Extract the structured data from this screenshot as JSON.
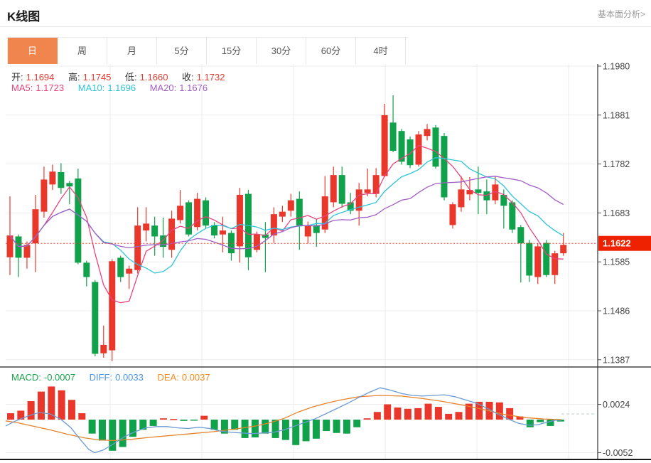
{
  "page": {
    "title": "K线图",
    "link": "基本面分析>"
  },
  "tabs": {
    "items": [
      "日",
      "周",
      "月",
      "5分",
      "15分",
      "30分",
      "60分",
      "4时"
    ],
    "active_index": 0
  },
  "legend": {
    "open_label": "开:",
    "open": "1.1694",
    "high_label": "高:",
    "high": "1.1745",
    "low_label": "低:",
    "low": "1.1660",
    "close_label": "收:",
    "close": "1.1732",
    "ma5_label": "MA5:",
    "ma5": "1.1723",
    "ma10_label": "MA10:",
    "ma10": "1.1696",
    "ma20_label": "MA20:",
    "ma20": "1.1676"
  },
  "macd_legend": {
    "macd_label": "MACD:",
    "macd": "-0.0007",
    "diff_label": "DIFF:",
    "diff": "0.0033",
    "dea_label": "DEA:",
    "dea": "0.0037"
  },
  "colors": {
    "up": "#e9382b",
    "down": "#0fa24a",
    "ma5": "#e8437c",
    "ma10": "#2ec3d9",
    "ma20": "#a25ec7",
    "dif_line": "#6b9bd2",
    "dea_line": "#e8822c",
    "price_line": "#f03b2d",
    "badge_bg": "#ee2200",
    "badge_text": "#ffffff",
    "accent": "#f0864d",
    "grid": "#ededed",
    "axis": "#333333",
    "axis_text": "#444444",
    "value_red": "#e23b30",
    "macd_text": "#16a349",
    "diff_text": "#4f94e0",
    "dea_text": "#f08c1f",
    "dash_ext": "#b9c8da"
  },
  "chart_data": {
    "type": "candlestick+macd",
    "title": "K线图",
    "grid": true,
    "main": {
      "type": "candlestick",
      "y_axis_labels": [
        "1.1980",
        "1.1881",
        "1.1782",
        "1.1683",
        "1.1585",
        "1.1486",
        "1.1387"
      ],
      "y_axis_side": "right",
      "current_price": "1.1622",
      "current_price_value": 1.1622,
      "ma_periods": [
        5,
        10,
        20
      ],
      "candles_ohlc": [
        [
          1.1594,
          1.1717,
          1.1558,
          1.1638
        ],
        [
          1.1636,
          1.164,
          1.1554,
          1.1593
        ],
        [
          1.1593,
          1.1626,
          1.1571,
          1.1619
        ],
        [
          1.1622,
          1.172,
          1.1564,
          1.1691
        ],
        [
          1.1686,
          1.1777,
          1.1674,
          1.1751
        ],
        [
          1.1741,
          1.1781,
          1.173,
          1.1767
        ],
        [
          1.1766,
          1.1784,
          1.1722,
          1.1734
        ],
        [
          1.1744,
          1.1748,
          1.1701,
          1.1737
        ],
        [
          1.1753,
          1.1773,
          1.158,
          1.1583
        ],
        [
          1.1583,
          1.1587,
          1.1535,
          1.1554
        ],
        [
          1.1544,
          1.1548,
          1.1394,
          1.1399
        ],
        [
          1.14,
          1.1456,
          1.1391,
          1.1417
        ],
        [
          1.1406,
          1.159,
          1.1384,
          1.1586
        ],
        [
          1.1593,
          1.1597,
          1.1544,
          1.1554
        ],
        [
          1.1561,
          1.1577,
          1.153,
          1.1571
        ],
        [
          1.1568,
          1.1695,
          1.1561,
          1.1658
        ],
        [
          1.1648,
          1.1695,
          1.1626,
          1.1662
        ],
        [
          1.1658,
          1.1676,
          1.1597,
          1.1636
        ],
        [
          1.1638,
          1.1674,
          1.1593,
          1.1615
        ],
        [
          1.1609,
          1.1688,
          1.1593,
          1.1672
        ],
        [
          1.1669,
          1.173,
          1.1662,
          1.1698
        ],
        [
          1.1705,
          1.1709,
          1.1636,
          1.164
        ],
        [
          1.1655,
          1.1724,
          1.1648,
          1.1712
        ],
        [
          1.1709,
          1.1715,
          1.1652,
          1.1658
        ],
        [
          1.1659,
          1.1665,
          1.1632,
          1.1638
        ],
        [
          1.164,
          1.1676,
          1.1604,
          1.1648
        ],
        [
          1.1643,
          1.1648,
          1.1587,
          1.1602
        ],
        [
          1.1616,
          1.1734,
          1.1583,
          1.172
        ],
        [
          1.1722,
          1.173,
          1.1568,
          1.1594
        ],
        [
          1.1609,
          1.1646,
          1.1604,
          1.164
        ],
        [
          1.164,
          1.1665,
          1.1564,
          1.1633
        ],
        [
          1.1638,
          1.1695,
          1.1623,
          1.1681
        ],
        [
          1.1676,
          1.1698,
          1.1665,
          1.1686
        ],
        [
          1.1688,
          1.1722,
          1.1676,
          1.1709
        ],
        [
          1.1712,
          1.1727,
          1.1609,
          1.1658
        ],
        [
          1.1636,
          1.1666,
          1.1622,
          1.1658
        ],
        [
          1.1659,
          1.1672,
          1.1615,
          1.1643
        ],
        [
          1.165,
          1.1758,
          1.1643,
          1.1717
        ],
        [
          1.1705,
          1.1777,
          1.1695,
          1.176
        ],
        [
          1.176,
          1.1777,
          1.1694,
          1.1702
        ],
        [
          1.1705,
          1.1724,
          1.1681,
          1.1688
        ],
        [
          1.1688,
          1.1744,
          1.1658,
          1.1731
        ],
        [
          1.1724,
          1.1773,
          1.1717,
          1.1731
        ],
        [
          1.1722,
          1.1774,
          1.1715,
          1.176
        ],
        [
          1.1758,
          1.1904,
          1.1756,
          1.1881
        ],
        [
          1.1866,
          1.1921,
          1.1806,
          1.1809
        ],
        [
          1.1849,
          1.1853,
          1.1781,
          1.1787
        ],
        [
          1.1832,
          1.1838,
          1.1774,
          1.178
        ],
        [
          1.1781,
          1.1849,
          1.1777,
          1.1842
        ],
        [
          1.1839,
          1.1863,
          1.183,
          1.1853
        ],
        [
          1.1856,
          1.1861,
          1.1773,
          1.1777
        ],
        [
          1.1839,
          1.1845,
          1.1709,
          1.1715
        ],
        [
          1.1659,
          1.1705,
          1.1652,
          1.1701
        ],
        [
          1.1695,
          1.1758,
          1.1686,
          1.1731
        ],
        [
          1.1721,
          1.1756,
          1.1709,
          1.173
        ],
        [
          1.1731,
          1.1777,
          1.1681,
          1.1724
        ],
        [
          1.1727,
          1.1751,
          1.1681,
          1.1709
        ],
        [
          1.1709,
          1.1758,
          1.1701,
          1.1741
        ],
        [
          1.172,
          1.1731,
          1.1652,
          1.1698
        ],
        [
          1.1705,
          1.1709,
          1.1643,
          1.165
        ],
        [
          1.1655,
          1.1659,
          1.1543,
          1.1622
        ],
        [
          1.1623,
          1.1629,
          1.1544,
          1.1557
        ],
        [
          1.1554,
          1.1622,
          1.154,
          1.1616
        ],
        [
          1.1623,
          1.1629,
          1.1554,
          1.1558
        ],
        [
          1.1558,
          1.1607,
          1.154,
          1.1602
        ],
        [
          1.1602,
          1.1643,
          1.1597,
          1.1619
        ]
      ]
    },
    "macd": {
      "type": "bar+line",
      "y_axis_labels": [
        "0.0024",
        "-0.0052"
      ],
      "histogram": [
        0.001,
        0.0014,
        0.0029,
        0.0044,
        0.0052,
        0.0046,
        0.0031,
        0.001,
        -0.0022,
        -0.0033,
        -0.0049,
        -0.0043,
        -0.0027,
        -0.0016,
        -0.001,
        0.0002,
        0.0001,
        -0.0002,
        -0.0001,
        0.0006,
        -0.0016,
        -0.0022,
        -0.0016,
        -0.0029,
        -0.0028,
        -0.0022,
        -0.0029,
        -0.0032,
        -0.004,
        -0.0034,
        -0.003,
        -0.0018,
        -0.0021,
        -0.0022,
        -0.0012,
        0.0002,
        0.0012,
        0.0024,
        0.0019,
        0.0017,
        0.0018,
        0.0025,
        0.002,
        0.0009,
        0.0012,
        0.0025,
        0.0028,
        0.0028,
        0.0027,
        0.0018,
        0.0005,
        -0.0012,
        -0.0004,
        -0.001,
        -0.0003
      ],
      "dif": [
        [
          8,
          -0.001
        ],
        [
          20,
          -0.0003
        ],
        [
          40,
          0.0006
        ],
        [
          55,
          0.0011
        ],
        [
          70,
          0.0009
        ],
        [
          85,
          0.0001
        ],
        [
          100,
          -0.0013
        ],
        [
          112,
          -0.003
        ],
        [
          125,
          -0.0047
        ],
        [
          133,
          -0.0052
        ],
        [
          145,
          -0.0048
        ],
        [
          160,
          -0.0038
        ],
        [
          175,
          -0.0027
        ],
        [
          190,
          -0.0019
        ],
        [
          205,
          -0.0013
        ],
        [
          220,
          -0.0011
        ],
        [
          235,
          -0.0011
        ],
        [
          250,
          -0.0013
        ],
        [
          265,
          -0.0014
        ],
        [
          280,
          -0.0012
        ],
        [
          295,
          -0.0014
        ],
        [
          310,
          -0.0018
        ],
        [
          325,
          -0.002
        ],
        [
          340,
          -0.0021
        ],
        [
          355,
          -0.0022
        ],
        [
          370,
          -0.0021
        ],
        [
          385,
          -0.002
        ],
        [
          400,
          -0.0016
        ],
        [
          415,
          -0.001
        ],
        [
          430,
          -0.0004
        ],
        [
          445,
          0.0002
        ],
        [
          460,
          0.001
        ],
        [
          475,
          0.0018
        ],
        [
          490,
          0.0026
        ],
        [
          505,
          0.0035
        ],
        [
          520,
          0.0043
        ],
        [
          535,
          0.005
        ],
        [
          550,
          0.0046
        ],
        [
          565,
          0.0041
        ],
        [
          580,
          0.0038
        ],
        [
          595,
          0.0037
        ],
        [
          610,
          0.0038
        ],
        [
          625,
          0.0039
        ],
        [
          640,
          0.0036
        ],
        [
          655,
          0.0031
        ],
        [
          670,
          0.0026
        ],
        [
          685,
          0.0018
        ],
        [
          700,
          0.0009
        ],
        [
          715,
          0.0001
        ],
        [
          730,
          -0.0006
        ],
        [
          745,
          -0.0009
        ],
        [
          757,
          -0.0008
        ],
        [
          770,
          -0.0004
        ],
        [
          782,
          -0.0001
        ],
        [
          790,
          -0.0001
        ]
      ],
      "dea": [
        [
          8,
          -0.0002
        ],
        [
          25,
          -0.0005
        ],
        [
          45,
          -0.001
        ],
        [
          70,
          -0.0016
        ],
        [
          95,
          -0.0023
        ],
        [
          120,
          -0.0029
        ],
        [
          140,
          -0.0032
        ],
        [
          160,
          -0.0033
        ],
        [
          185,
          -0.0031
        ],
        [
          210,
          -0.0028
        ],
        [
          240,
          -0.0025
        ],
        [
          270,
          -0.0022
        ],
        [
          300,
          -0.0019
        ],
        [
          330,
          -0.0015
        ],
        [
          360,
          -0.001
        ],
        [
          380,
          -0.0005
        ],
        [
          400,
          0.0002
        ],
        [
          420,
          0.0012
        ],
        [
          440,
          0.002
        ],
        [
          460,
          0.0026
        ],
        [
          480,
          0.0031
        ],
        [
          505,
          0.0036
        ],
        [
          535,
          0.0038
        ],
        [
          565,
          0.0037
        ],
        [
          595,
          0.0033
        ],
        [
          620,
          0.0029
        ],
        [
          650,
          0.0023
        ],
        [
          680,
          0.0016
        ],
        [
          710,
          0.0008
        ],
        [
          740,
          0.0003
        ],
        [
          765,
          0.0001
        ],
        [
          790,
          0.0
        ]
      ]
    }
  }
}
